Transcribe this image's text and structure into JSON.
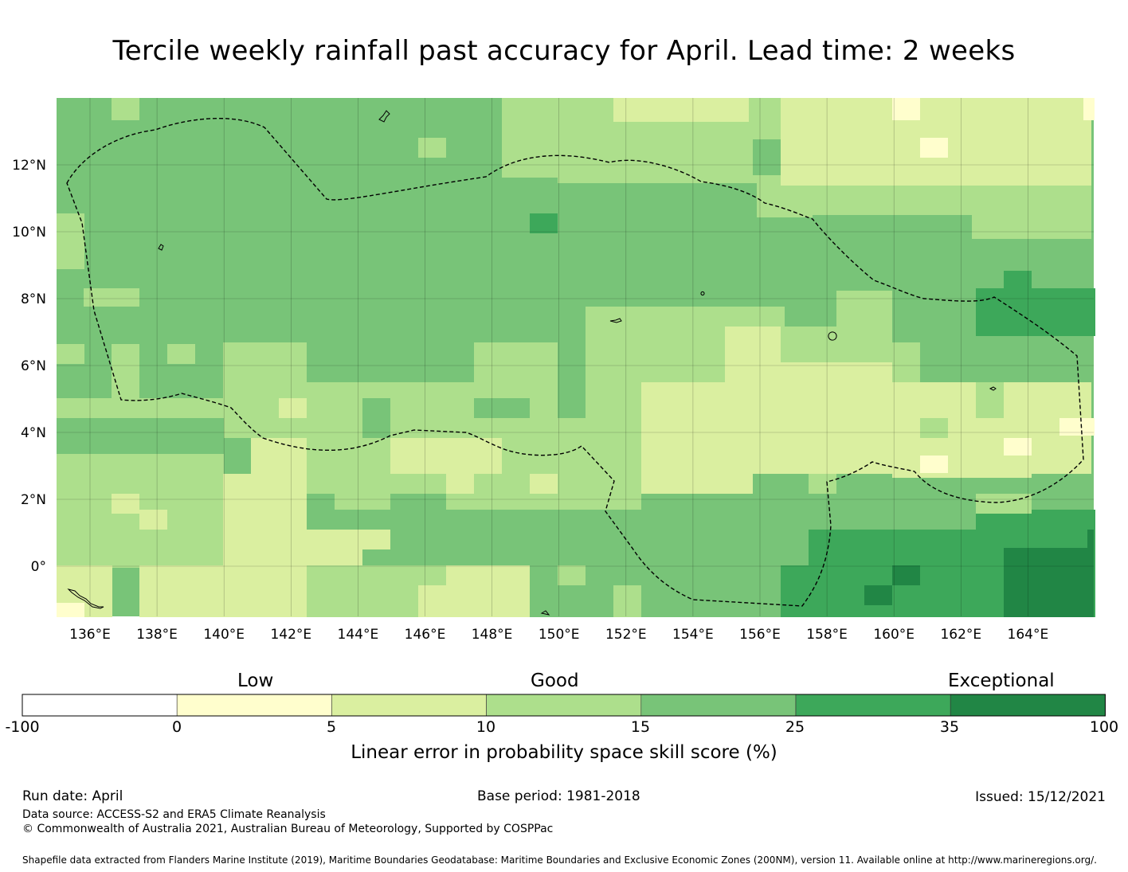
{
  "title": "Tercile weekly rainfall past accuracy for April. Lead time: 2 weeks",
  "map": {
    "lon_ticks": [
      "136°E",
      "138°E",
      "140°E",
      "142°E",
      "144°E",
      "146°E",
      "148°E",
      "150°E",
      "152°E",
      "154°E",
      "156°E",
      "158°E",
      "160°E",
      "162°E",
      "164°E"
    ],
    "lat_ticks": [
      "12°N",
      "10°N",
      "8°N",
      "6°N",
      "4°N",
      "2°N",
      "0°"
    ],
    "boundary_label": "EEZ dashed outline",
    "colors": {
      "low": "#fffecd",
      "c5": "#daefa0",
      "c10": "#addf8c",
      "c15": "#78c478",
      "c25": "#3da85a",
      "c35": "#218645"
    }
  },
  "colorbar": {
    "category_labels": [
      "Low",
      "Good",
      "Exceptional"
    ],
    "ticks": [
      "-100",
      "0",
      "5",
      "10",
      "15",
      "25",
      "35",
      "100"
    ],
    "colors": [
      "#ffffff",
      "#fffecd",
      "#daefa0",
      "#addf8c",
      "#78c478",
      "#3da85a",
      "#218645"
    ],
    "title": "Linear error in probability space skill score (%)"
  },
  "footer": {
    "run_date": "Run date: April",
    "base_period": "Base period: 1981-2018",
    "issued": "Issued: 15/12/2021",
    "data_source": "Data source: ACCESS-S2 and ERA5 Climate Reanalysis",
    "copyright": "© Commonwealth of Australia 2021, Australian Bureau of Meteorology, Supported by COSPPac",
    "shapefile": "Shapefile data extracted from Flanders Marine Institute (2019), Maritime Boundaries Geodatabase: Maritime Boundaries and Exclusive Economic Zones (200NM), version 11. Available online at http://www.marineregions.org/."
  }
}
